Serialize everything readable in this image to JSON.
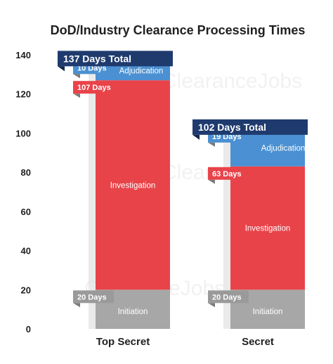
{
  "chart_data": {
    "type": "bar",
    "stacked": true,
    "title": "DoD/Industry Clearance Processing Times",
    "categories": [
      "Top Secret",
      "Secret"
    ],
    "totals": [
      137,
      102
    ],
    "total_labels": [
      "137 Days Total",
      "102 Days Total"
    ],
    "series": [
      {
        "name": "Initiation",
        "values": [
          20,
          20
        ],
        "labels": [
          "20 Days",
          "20 Days"
        ],
        "color": "#a7a7a7"
      },
      {
        "name": "Investigation",
        "values": [
          107,
          63
        ],
        "labels": [
          "107 Days",
          "63 Days"
        ],
        "color": "#e9434a"
      },
      {
        "name": "Adjudication",
        "values": [
          10,
          19
        ],
        "labels": [
          "10 Days",
          "19 Days"
        ],
        "color": "#4a90d2"
      }
    ],
    "ylim": [
      0,
      140
    ],
    "yticks": [
      "0",
      "20",
      "40",
      "60",
      "80",
      "100",
      "120",
      "140"
    ],
    "grid": false,
    "colors": {
      "total_tag": "#1f3b6e",
      "tag_shadow": "#7a7a7a"
    }
  },
  "watermark": {
    "text": "ClearanceJobs",
    "logo": "clearancejobs-logo"
  }
}
